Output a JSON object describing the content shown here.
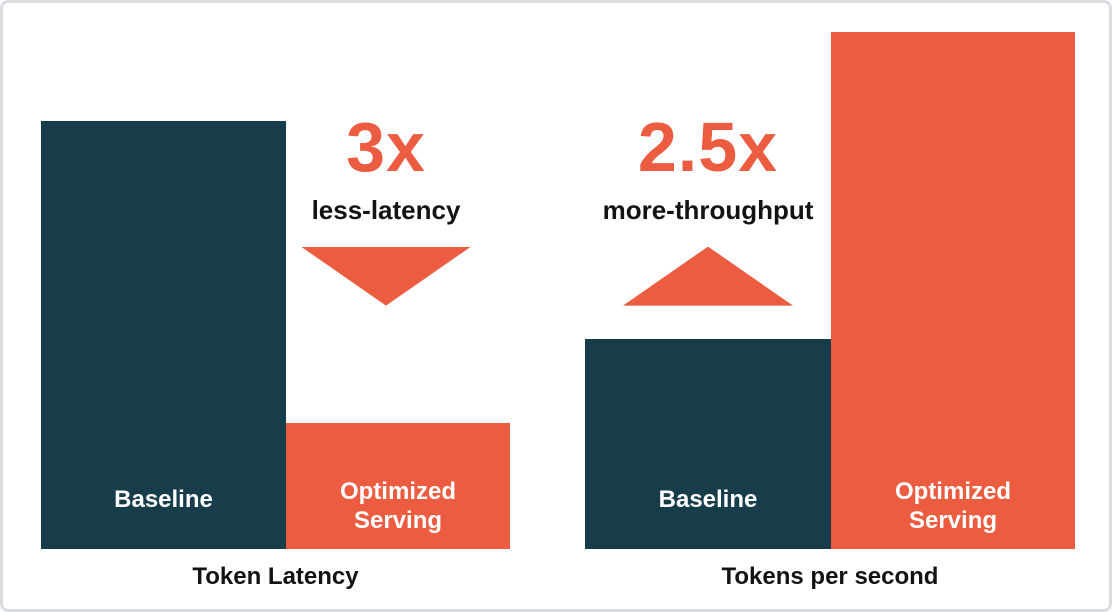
{
  "card": {
    "background": "#FFFFFF",
    "border_color": "#D9DCE1"
  },
  "colors": {
    "teal": "#173C4A",
    "orange": "#EB5C40",
    "label_text": "#FFFFFF",
    "dark_text": "#131313"
  },
  "charts": [
    {
      "caption": "Token Latency",
      "annotation": {
        "multiplier": "3x",
        "label": "less-latency",
        "direction": "down"
      },
      "bars": [
        {
          "label": "Baseline",
          "color_key": "teal"
        },
        {
          "label": "Optimized Serving",
          "color_key": "orange"
        }
      ]
    },
    {
      "caption": "Tokens per second",
      "annotation": {
        "multiplier": "2.5x",
        "label": "more-throughput",
        "direction": "up"
      },
      "bars": [
        {
          "label": "Baseline",
          "color_key": "teal"
        },
        {
          "label": "Optimized Serving",
          "color_key": "orange"
        }
      ]
    }
  ],
  "chart_data": [
    {
      "type": "bar",
      "title": "Token Latency",
      "categories": [
        "Baseline",
        "Optimized Serving"
      ],
      "values": [
        3,
        1
      ],
      "value_scale": "relative (normalized to Optimized Serving = 1)",
      "annotation": "3x less-latency",
      "annotation_arrow": "down",
      "bar_colors": [
        "#173C4A",
        "#EB5C40"
      ],
      "xlabel": "",
      "ylabel": "",
      "axes_shown": false,
      "grid": false,
      "legend_position": "none"
    },
    {
      "type": "bar",
      "title": "Tokens per second",
      "categories": [
        "Baseline",
        "Optimized Serving"
      ],
      "values": [
        1,
        2.5
      ],
      "value_scale": "relative (normalized to Baseline = 1)",
      "annotation": "2.5x more-throughput",
      "annotation_arrow": "up",
      "bar_colors": [
        "#173C4A",
        "#EB5C40"
      ],
      "xlabel": "",
      "ylabel": "",
      "axes_shown": false,
      "grid": false,
      "legend_position": "none"
    }
  ]
}
